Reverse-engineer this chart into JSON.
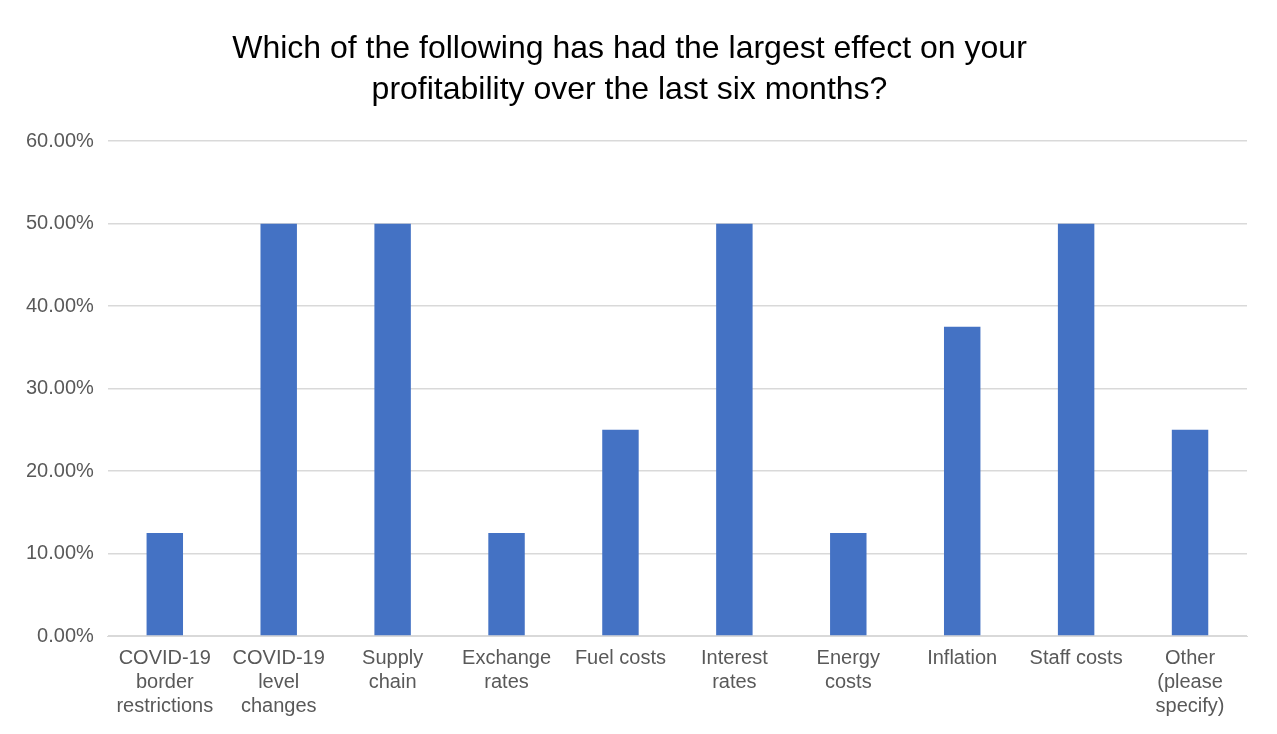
{
  "chart_data": {
    "type": "bar",
    "title": "Which of the following has had the largest effect on your profitability over the last six months?",
    "categories": [
      "COVID-19\nborder\nrestrictions",
      "COVID-19\nlevel\nchanges",
      "Supply\nchain",
      "Exchange\nrates",
      "Fuel costs",
      "Interest\nrates",
      "Energy\ncosts",
      "Inflation",
      "Staff costs",
      "Other\n(please\nspecify)"
    ],
    "values": [
      12.5,
      50,
      50,
      12.5,
      25,
      50,
      12.5,
      37.5,
      50,
      25
    ],
    "color": "#4472c4",
    "ylim": [
      0,
      60
    ],
    "yticks": [
      {
        "value": 0,
        "label": "0.00%"
      },
      {
        "value": 10,
        "label": "10.00%"
      },
      {
        "value": 20,
        "label": "20.00%"
      },
      {
        "value": 30,
        "label": "30.00%"
      },
      {
        "value": 40,
        "label": "40.00%"
      },
      {
        "value": 50,
        "label": "50.00%"
      },
      {
        "value": 60,
        "label": "60.00%"
      }
    ],
    "grid": "y"
  }
}
